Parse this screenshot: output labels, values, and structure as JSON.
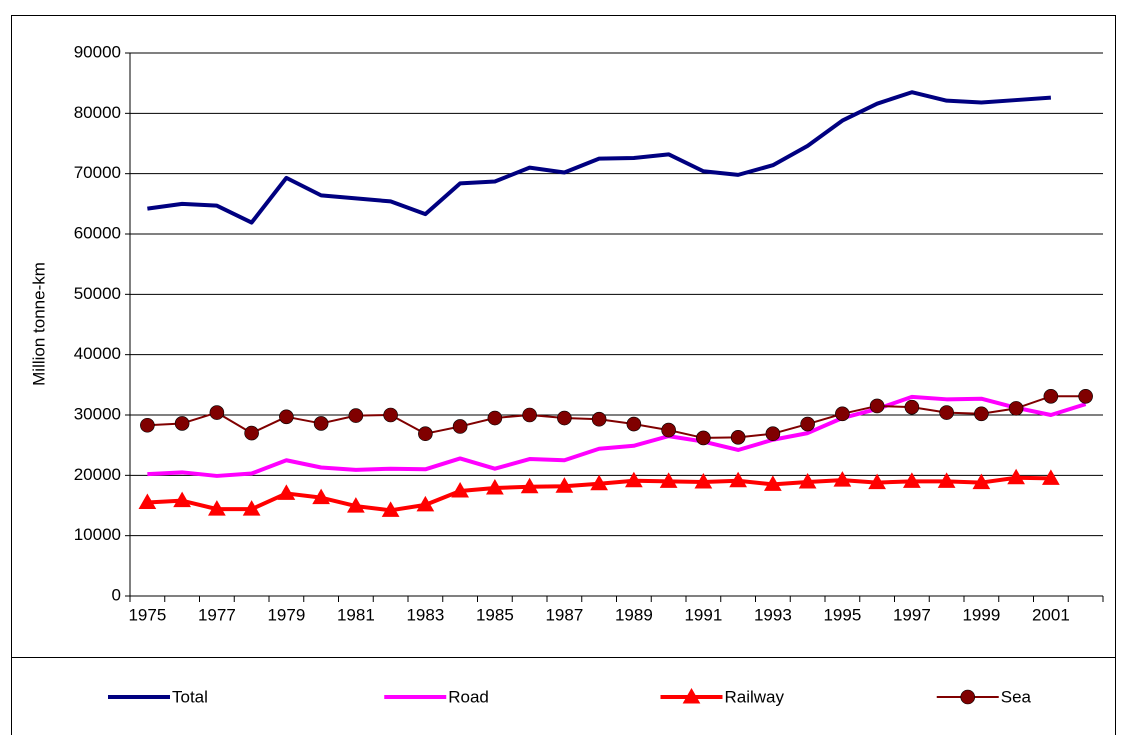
{
  "chart_data": {
    "type": "line",
    "y_label": "Million tonne-km",
    "categories": [
      1975,
      null,
      1977,
      null,
      1979,
      null,
      1981,
      null,
      1983,
      null,
      1985,
      null,
      1987,
      null,
      1989,
      null,
      1991,
      null,
      1993,
      null,
      1995,
      null,
      1997,
      null,
      1999,
      null,
      2001,
      null
    ],
    "ylim": [
      0,
      90000
    ],
    "yticks": [
      0,
      10000,
      20000,
      30000,
      40000,
      50000,
      60000,
      70000,
      80000,
      90000
    ],
    "grid": true,
    "legend": "bottom",
    "series": [
      {
        "name": "Total",
        "color": "#000080",
        "marker": "none",
        "values": [
          64200,
          65000,
          64700,
          61900,
          69300,
          66400,
          65900,
          65400,
          63300,
          68400,
          68700,
          71000,
          70200,
          72500,
          72600,
          73200,
          70400,
          69800,
          71400,
          74600,
          78800,
          81600,
          83500,
          82100,
          81800,
          82200,
          82600,
          null
        ]
      },
      {
        "name": "Road",
        "color": "#ff00ff",
        "marker": "none",
        "values": [
          20200,
          20500,
          19900,
          20300,
          22500,
          21300,
          20900,
          21100,
          21000,
          22800,
          21100,
          22700,
          22500,
          24400,
          24900,
          26500,
          25600,
          24200,
          25900,
          27000,
          29500,
          31000,
          33000,
          32600,
          32700,
          31200,
          30000,
          31800
        ]
      },
      {
        "name": "Railway",
        "color": "#ff0000",
        "marker": "triangle",
        "values": [
          15500,
          15800,
          14400,
          14400,
          17000,
          16300,
          14900,
          14200,
          15100,
          17400,
          17900,
          18100,
          18200,
          18600,
          19100,
          19000,
          18900,
          19100,
          18500,
          18900,
          19200,
          18800,
          19000,
          19000,
          18800,
          19600,
          19500,
          null
        ]
      },
      {
        "name": "Sea",
        "color": "#800000",
        "marker": "circle",
        "values": [
          28300,
          28600,
          30400,
          27000,
          29700,
          28600,
          29900,
          30000,
          26900,
          28100,
          29500,
          30000,
          29500,
          29300,
          28500,
          27500,
          26200,
          26300,
          26900,
          28500,
          30200,
          31500,
          31300,
          30400,
          30200,
          31100,
          33100,
          33100
        ]
      }
    ]
  }
}
